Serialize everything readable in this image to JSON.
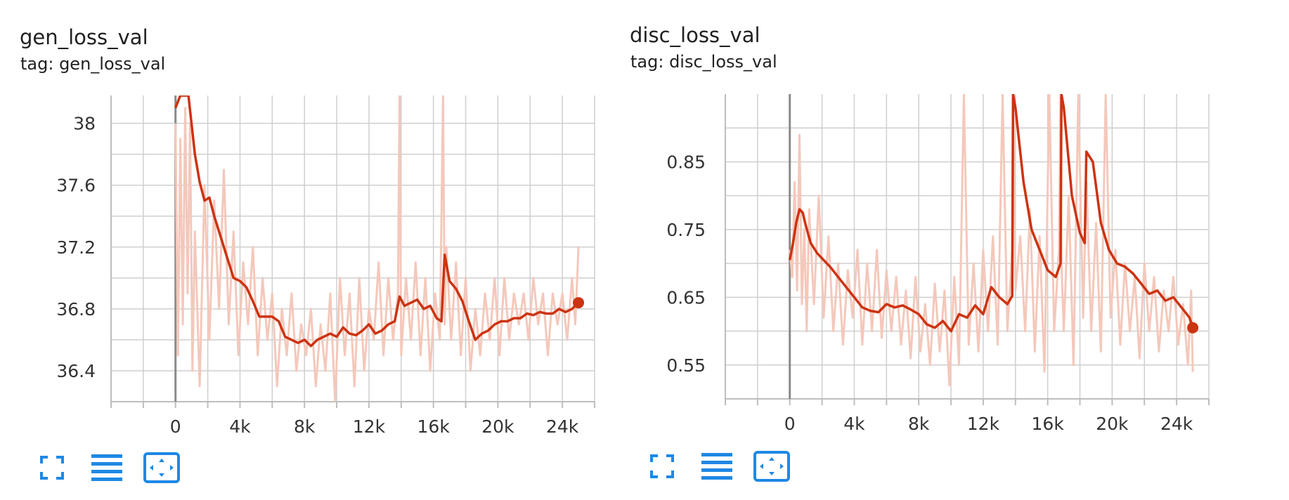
{
  "colors": {
    "smoothed": "#cc3311",
    "raw": "#f4c8bb",
    "grid": "#cfcfcf",
    "axis": "#bdbdbd",
    "zero_line": "#8a8a8a",
    "icon": "#1e88e5",
    "tick_text": "#333333"
  },
  "toolbar_icons": [
    "fullscreen-icon",
    "data-table-icon",
    "fit-domain-icon"
  ],
  "cards": [
    {
      "title": "gen_loss_val",
      "tag": "tag: gen_loss_val"
    },
    {
      "title": "disc_loss_val",
      "tag": "tag: disc_loss_val"
    }
  ],
  "chart_data": [
    {
      "type": "line",
      "title": "gen_loss_val",
      "subtitle": "tag: gen_loss_val",
      "xlim": [
        -4000,
        26000
      ],
      "ylim": [
        36.2,
        38.18
      ],
      "x_ticks": [
        0,
        4000,
        8000,
        12000,
        16000,
        20000,
        24000
      ],
      "x_tick_labels": [
        "0",
        "4k",
        "8k",
        "12k",
        "16k",
        "20k",
        "24k"
      ],
      "y_ticks": [
        36.4,
        36.8,
        37.2,
        37.6,
        38
      ],
      "y_tick_labels": [
        "36.4",
        "36.8",
        "37.2",
        "37.6",
        "38"
      ],
      "grid": true,
      "series": [
        {
          "style": "smoothed",
          "x": [
            0,
            300,
            800,
            1200,
            1500,
            1800,
            2100,
            2400,
            2700,
            3000,
            3300,
            3600,
            4000,
            4400,
            4800,
            5200,
            5600,
            6000,
            6400,
            6800,
            7200,
            7600,
            8000,
            8400,
            8800,
            9200,
            9600,
            10000,
            10400,
            10800,
            11200,
            11600,
            12000,
            12400,
            12800,
            13200,
            13600,
            13900,
            14200,
            14600,
            15000,
            15400,
            15800,
            16200,
            16500,
            16700,
            17000,
            17400,
            17800,
            18200,
            18600,
            19000,
            19400,
            19800,
            20200,
            20600,
            21000,
            21400,
            21800,
            22200,
            22600,
            23000,
            23400,
            23800,
            24200,
            24600,
            25000
          ],
          "y": [
            38.1,
            38.18,
            38.18,
            37.8,
            37.62,
            37.5,
            37.52,
            37.4,
            37.3,
            37.2,
            37.1,
            37.0,
            36.98,
            36.94,
            36.85,
            36.75,
            36.75,
            36.75,
            36.72,
            36.62,
            36.6,
            36.58,
            36.6,
            36.56,
            36.6,
            36.62,
            36.64,
            36.62,
            36.68,
            36.64,
            36.63,
            36.66,
            36.7,
            36.64,
            36.66,
            36.7,
            36.72,
            36.88,
            36.82,
            36.84,
            36.86,
            36.8,
            36.82,
            36.74,
            36.72,
            37.15,
            36.98,
            36.93,
            36.85,
            36.72,
            36.6,
            36.64,
            36.66,
            36.7,
            36.72,
            36.72,
            36.74,
            36.74,
            36.77,
            36.76,
            36.78,
            36.77,
            36.77,
            36.8,
            36.78,
            36.8,
            36.84
          ]
        },
        {
          "style": "raw",
          "x": [
            0,
            150,
            300,
            450,
            600,
            750,
            900,
            1050,
            1200,
            1500,
            1800,
            2100,
            2400,
            2700,
            3000,
            3300,
            3600,
            3900,
            4200,
            4500,
            4800,
            5100,
            5400,
            5700,
            6000,
            6300,
            6600,
            6900,
            7200,
            7500,
            7800,
            8100,
            8400,
            8700,
            9000,
            9300,
            9600,
            9900,
            10200,
            10500,
            10800,
            11100,
            11400,
            11700,
            12000,
            12300,
            12600,
            12900,
            13200,
            13500,
            13800,
            13900,
            14000,
            14300,
            14600,
            14900,
            15200,
            15500,
            15800,
            16100,
            16400,
            16600,
            16700,
            16800,
            17100,
            17400,
            17700,
            18000,
            18300,
            18600,
            18900,
            19200,
            19500,
            19800,
            20100,
            20400,
            20700,
            21000,
            21300,
            21600,
            21900,
            22200,
            22500,
            22800,
            23100,
            23400,
            23700,
            24000,
            24300,
            24600,
            24800,
            25000
          ],
          "y": [
            38.0,
            36.5,
            37.9,
            36.7,
            38.1,
            36.9,
            38.0,
            36.4,
            37.3,
            36.3,
            37.6,
            36.6,
            37.5,
            36.8,
            37.7,
            36.7,
            37.3,
            36.5,
            37.1,
            36.7,
            37.2,
            36.5,
            37.0,
            36.6,
            36.9,
            36.3,
            36.8,
            36.5,
            36.9,
            36.4,
            36.7,
            36.5,
            36.8,
            36.3,
            36.7,
            36.4,
            36.9,
            36.2,
            37.0,
            36.5,
            36.9,
            36.3,
            37.0,
            36.4,
            36.8,
            36.6,
            37.1,
            36.5,
            37.0,
            36.6,
            36.9,
            38.2,
            36.5,
            37.0,
            36.6,
            37.1,
            36.5,
            37.0,
            36.4,
            36.9,
            36.6,
            38.2,
            36.7,
            37.2,
            36.6,
            37.1,
            36.5,
            37.0,
            36.4,
            36.8,
            36.5,
            36.9,
            36.6,
            37.0,
            36.5,
            37.0,
            36.6,
            36.9,
            36.7,
            36.9,
            36.6,
            37.0,
            36.7,
            36.9,
            36.5,
            36.9,
            36.7,
            36.9,
            36.6,
            37.0,
            36.7,
            37.2
          ]
        }
      ]
    },
    {
      "type": "line",
      "title": "disc_loss_val",
      "subtitle": "tag: disc_loss_val",
      "xlim": [
        -4000,
        26000
      ],
      "ylim": [
        0.5,
        0.95
      ],
      "x_ticks": [
        0,
        4000,
        8000,
        12000,
        16000,
        20000,
        24000
      ],
      "x_tick_labels": [
        "0",
        "4k",
        "8k",
        "12k",
        "16k",
        "20k",
        "24k"
      ],
      "y_ticks": [
        0.55,
        0.65,
        0.75,
        0.85
      ],
      "y_tick_labels": [
        "0.55",
        "0.65",
        "0.75",
        "0.85"
      ],
      "grid": true,
      "series": [
        {
          "style": "smoothed",
          "x": [
            0,
            200,
            400,
            600,
            800,
            1000,
            1300,
            1700,
            2100,
            2500,
            3000,
            3500,
            4000,
            4500,
            5000,
            5500,
            6000,
            6500,
            7000,
            7500,
            8000,
            8500,
            9000,
            9500,
            10000,
            10500,
            11000,
            11500,
            12000,
            12500,
            13000,
            13500,
            13800,
            13850,
            14000,
            14500,
            15000,
            15500,
            16000,
            16500,
            16800,
            16850,
            17000,
            17500,
            18000,
            18300,
            18400,
            18800,
            19300,
            19800,
            20300,
            20800,
            21300,
            21800,
            22300,
            22800,
            23300,
            23800,
            24300,
            24800,
            25000
          ],
          "y": [
            0.705,
            0.73,
            0.76,
            0.78,
            0.775,
            0.755,
            0.73,
            0.715,
            0.705,
            0.695,
            0.68,
            0.665,
            0.65,
            0.635,
            0.63,
            0.628,
            0.64,
            0.635,
            0.638,
            0.632,
            0.625,
            0.61,
            0.605,
            0.615,
            0.6,
            0.625,
            0.62,
            0.638,
            0.625,
            0.665,
            0.65,
            0.64,
            0.652,
            0.95,
            0.93,
            0.82,
            0.75,
            0.72,
            0.69,
            0.68,
            0.7,
            0.95,
            0.93,
            0.8,
            0.745,
            0.73,
            0.865,
            0.85,
            0.76,
            0.72,
            0.7,
            0.695,
            0.685,
            0.67,
            0.655,
            0.66,
            0.645,
            0.65,
            0.635,
            0.62,
            0.605
          ]
        },
        {
          "style": "raw",
          "x": [
            0,
            150,
            300,
            450,
            600,
            750,
            900,
            1050,
            1200,
            1500,
            1800,
            2100,
            2400,
            2700,
            3000,
            3300,
            3600,
            3900,
            4200,
            4500,
            4800,
            5100,
            5400,
            5700,
            6000,
            6300,
            6600,
            6900,
            7200,
            7500,
            7800,
            8100,
            8400,
            8700,
            9000,
            9300,
            9600,
            9900,
            10200,
            10500,
            10800,
            11100,
            11400,
            11700,
            12000,
            12300,
            12600,
            12900,
            13200,
            13500,
            13800,
            13850,
            14000,
            14300,
            14600,
            14900,
            15200,
            15500,
            15800,
            16100,
            16400,
            16700,
            16800,
            16850,
            17000,
            17300,
            17600,
            17900,
            18200,
            18400,
            18700,
            19000,
            19300,
            19600,
            19900,
            20200,
            20500,
            20800,
            21100,
            21400,
            21700,
            22000,
            22300,
            22600,
            22900,
            23200,
            23500,
            23800,
            24100,
            24400,
            24700,
            24900,
            25000
          ],
          "y": [
            0.72,
            0.68,
            0.82,
            0.66,
            0.89,
            0.64,
            0.75,
            0.6,
            0.78,
            0.64,
            0.8,
            0.62,
            0.74,
            0.6,
            0.7,
            0.58,
            0.69,
            0.62,
            0.72,
            0.58,
            0.7,
            0.6,
            0.72,
            0.59,
            0.69,
            0.6,
            0.68,
            0.58,
            0.66,
            0.56,
            0.68,
            0.57,
            0.64,
            0.55,
            0.67,
            0.57,
            0.66,
            0.52,
            0.68,
            0.55,
            0.95,
            0.58,
            0.7,
            0.57,
            0.72,
            0.6,
            0.74,
            0.58,
            0.95,
            0.6,
            0.72,
            0.95,
            0.66,
            0.74,
            0.6,
            0.78,
            0.57,
            0.74,
            0.54,
            0.95,
            0.6,
            0.72,
            0.95,
            0.7,
            0.6,
            0.8,
            0.55,
            0.95,
            0.62,
            0.82,
            0.6,
            0.76,
            0.57,
            0.95,
            0.62,
            0.72,
            0.58,
            0.7,
            0.6,
            0.68,
            0.56,
            0.7,
            0.6,
            0.68,
            0.57,
            0.66,
            0.6,
            0.68,
            0.58,
            0.64,
            0.55,
            0.66,
            0.54
          ]
        }
      ]
    }
  ]
}
